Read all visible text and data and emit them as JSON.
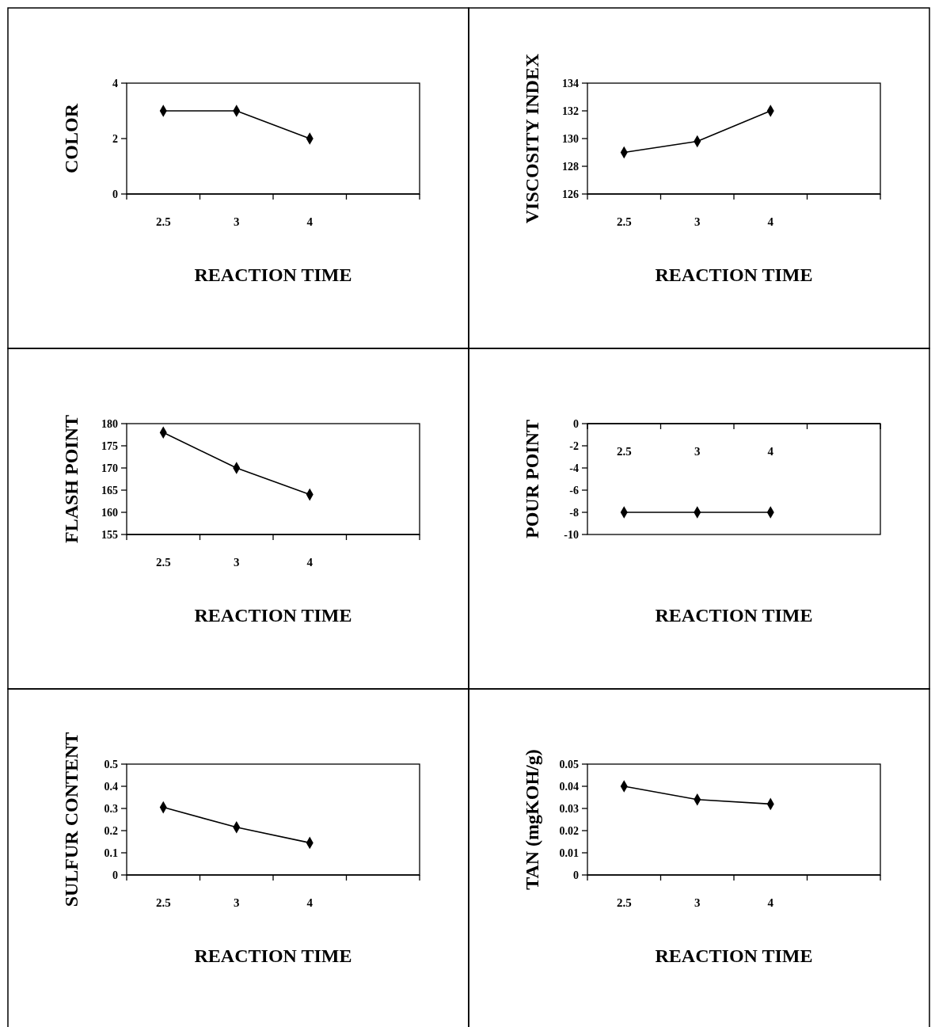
{
  "chart_data": [
    {
      "type": "line",
      "categories": [
        "2.5",
        "3",
        "4"
      ],
      "series": [
        {
          "color": "#000000",
          "values": [
            3,
            3,
            2
          ]
        }
      ],
      "ylim": [
        0,
        4
      ],
      "yticks": [
        0,
        2,
        4
      ],
      "xlabel": "REACTION TIME",
      "ylabel": "COLOR",
      "marker": "diamond"
    },
    {
      "type": "line",
      "categories": [
        "2.5",
        "3",
        "4"
      ],
      "series": [
        {
          "color": "#000000",
          "values": [
            129,
            129.8,
            132
          ]
        }
      ],
      "ylim": [
        126,
        134
      ],
      "yticks": [
        126,
        128,
        130,
        132,
        134
      ],
      "xlabel": "REACTION TIME",
      "ylabel": "VISCOSITY INDEX",
      "marker": "diamond"
    },
    {
      "type": "line",
      "categories": [
        "2.5",
        "3",
        "4"
      ],
      "series": [
        {
          "color": "#000000",
          "values": [
            178,
            170,
            164
          ]
        }
      ],
      "ylim": [
        155,
        180
      ],
      "yticks": [
        155,
        160,
        165,
        170,
        175,
        180
      ],
      "xlabel": "REACTION TIME",
      "ylabel": "FLASH POINT",
      "marker": "diamond"
    },
    {
      "type": "line",
      "categories": [
        "2.5",
        "3",
        "4"
      ],
      "series": [
        {
          "color": "#000000",
          "values": [
            -8,
            -8,
            -8
          ]
        }
      ],
      "ylim": [
        -10,
        0
      ],
      "yticks": [
        -10,
        -8,
        -6,
        -4,
        -2,
        0
      ],
      "xlabel": "REACTION TIME",
      "ylabel": "POUR POINT",
      "marker": "diamond"
    },
    {
      "type": "line",
      "categories": [
        "2.5",
        "3",
        "4"
      ],
      "series": [
        {
          "color": "#000000",
          "values": [
            0.305,
            0.215,
            0.145
          ]
        }
      ],
      "ylim": [
        0,
        0.5
      ],
      "yticks": [
        0,
        0.1,
        0.2,
        0.3,
        0.4,
        0.5
      ],
      "xlabel": "REACTION TIME",
      "ylabel": "SULFUR CONTENT",
      "marker": "diamond"
    },
    {
      "type": "line",
      "categories": [
        "2.5",
        "3",
        "4"
      ],
      "series": [
        {
          "color": "#000000",
          "values": [
            0.04,
            0.034,
            0.032
          ]
        }
      ],
      "ylim": [
        0,
        0.05
      ],
      "yticks": [
        0,
        0.01,
        0.02,
        0.03,
        0.04,
        0.05
      ],
      "xlabel": "REACTION TIME",
      "ylabel": "TAN (mgKOH/g)",
      "marker": "diamond"
    }
  ]
}
